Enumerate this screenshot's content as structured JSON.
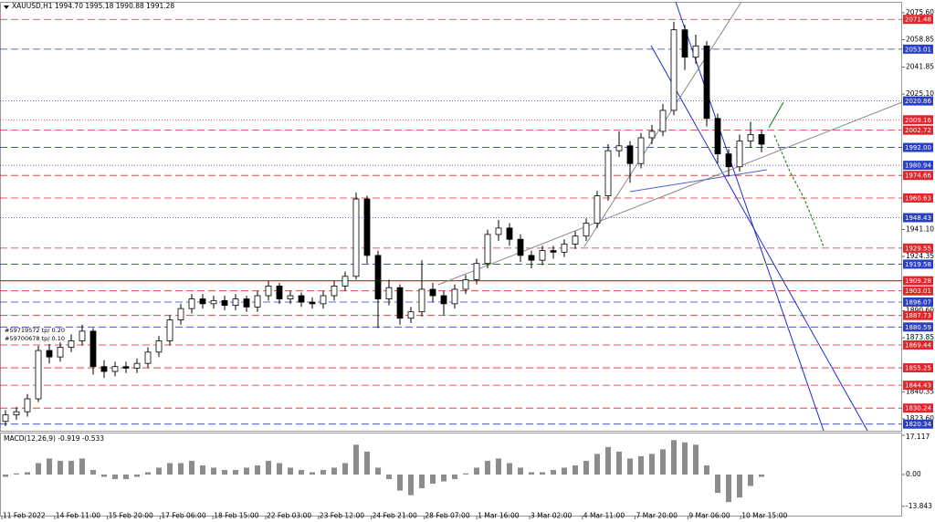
{
  "chart_data": [
    {
      "type": "candlestick",
      "title": "XAUUSD,H1  1994.70 1995.18 1990.88 1991.28",
      "annotations": [
        "#59719572 tp/ 0.20",
        "#59700678 tp/ 0.10"
      ],
      "ylim": [
        1816.2,
        2081.8
      ],
      "yticks": [
        {
          "value": 2075.6,
          "label": "2075.60"
        },
        2058.85,
        2041.85,
        {
          "value": 2025.1,
          "label": "2025.10"
        },
        {
          "value": 1941.1,
          "label": "1941.10"
        },
        1924.35,
        {
          "value": 1890.6,
          "label": "1890.60"
        },
        1873.85,
        1840.35,
        {
          "value": 1823.6,
          "label": "1823.60"
        }
      ],
      "xlabels": [
        "11 Feb 2022",
        "14 Feb 11:00",
        "15 Feb 20:00",
        "17 Feb 06:00",
        "18 Feb 15:00",
        "22 Feb 03:00",
        "23 Feb 12:00",
        "24 Feb 21:00",
        "28 Feb 07:00",
        "1 Mar 16:00",
        "3 Mar 02:00",
        "4 Mar 11:00",
        "7 Mar 20:00",
        "9 Mar 06:00",
        "10 Mar 15:00"
      ],
      "color": "#000000",
      "levels": [
        {
          "value": 2071.48,
          "color": "#e0262b",
          "style": "dashed"
        },
        {
          "value": 2053.01,
          "color": "#2a3fc4",
          "style": "dashed"
        },
        {
          "value": 2020.86,
          "color": "#2a3fc4",
          "style": "dotted"
        },
        {
          "value": 2009.16,
          "color": "#e0262b",
          "style": "dotted"
        },
        {
          "value": 2002.72,
          "color": "#e0262b",
          "style": "dashed"
        },
        {
          "value": 1992,
          "label": "1992.00",
          "color": "#2a3fc4",
          "style": "dashed"
        },
        {
          "value": 1980.94,
          "color": "#2a3fc4",
          "style": "dotted"
        },
        {
          "value": 1974.66,
          "color": "#e0262b",
          "style": "dashed"
        },
        {
          "value": 1960.63,
          "color": "#e0262b",
          "style": "dashed"
        },
        {
          "value": 1948.43,
          "color": "#2a3fc4",
          "style": "dotted"
        },
        {
          "value": 1929.55,
          "color": "#e0262b",
          "style": "dashed"
        },
        {
          "value": 1919.58,
          "color": "#2a3fc4",
          "style": "dashed"
        },
        {
          "value": 1909.28,
          "color": "#e0262b",
          "style": "solid"
        },
        {
          "value": 1903.01,
          "color": "#e0262b",
          "style": "dashed"
        },
        {
          "value": 1896.07,
          "color": "#2a3fc4",
          "style": "dashed"
        },
        {
          "value": 1887.73,
          "color": "#e0262b",
          "style": "dashed"
        },
        {
          "value": 1880.59,
          "color": "#2a3fc4",
          "style": "dashed"
        },
        {
          "value": 1869.44,
          "color": "#e0262b",
          "style": "dashed"
        },
        {
          "value": 1855.25,
          "color": "#e0262b",
          "style": "dashed"
        },
        {
          "value": 1844.43,
          "color": "#e0262b",
          "style": "dashed"
        },
        {
          "value": 1830.24,
          "color": "#e0262b",
          "style": "dashed"
        },
        {
          "value": 1820.34,
          "color": "#2a3fc4",
          "style": "dashed"
        }
      ],
      "candles": [
        [
          1822,
          1829,
          1819,
          1826
        ],
        [
          1826,
          1831,
          1823,
          1828
        ],
        [
          1828,
          1839,
          1825,
          1836
        ],
        [
          1836,
          1869,
          1834,
          1866
        ],
        [
          1866,
          1870,
          1858,
          1862
        ],
        [
          1862,
          1871,
          1859,
          1868
        ],
        [
          1868,
          1876,
          1865,
          1872
        ],
        [
          1872,
          1882,
          1869,
          1878
        ],
        [
          1878,
          1880,
          1851,
          1856
        ],
        [
          1856,
          1860,
          1849,
          1853
        ],
        [
          1853,
          1859,
          1850,
          1856
        ],
        [
          1856,
          1859,
          1852,
          1855
        ],
        [
          1855,
          1861,
          1852,
          1858
        ],
        [
          1858,
          1868,
          1855,
          1865
        ],
        [
          1865,
          1875,
          1862,
          1872
        ],
        [
          1872,
          1888,
          1869,
          1885
        ],
        [
          1885,
          1895,
          1882,
          1892
        ],
        [
          1892,
          1901,
          1889,
          1898
        ],
        [
          1898,
          1901,
          1892,
          1895
        ],
        [
          1895,
          1900,
          1892,
          1897
        ],
        [
          1897,
          1900,
          1891,
          1894
        ],
        [
          1894,
          1901,
          1891,
          1898
        ],
        [
          1898,
          1900,
          1890,
          1893
        ],
        [
          1893,
          1903,
          1890,
          1900
        ],
        [
          1900,
          1909,
          1897,
          1906
        ],
        [
          1906,
          1908,
          1895,
          1898
        ],
        [
          1898,
          1903,
          1895,
          1900
        ],
        [
          1900,
          1902,
          1893,
          1896
        ],
        [
          1896,
          1899,
          1892,
          1895
        ],
        [
          1895,
          1903,
          1892,
          1900
        ],
        [
          1900,
          1909,
          1897,
          1906
        ],
        [
          1906,
          1915,
          1903,
          1912
        ],
        [
          1912,
          1964,
          1910,
          1960
        ],
        [
          1960,
          1962,
          1920,
          1925
        ],
        [
          1925,
          1928,
          1880,
          1898
        ],
        [
          1898,
          1910,
          1894,
          1905
        ],
        [
          1905,
          1907,
          1882,
          1886
        ],
        [
          1886,
          1893,
          1883,
          1890
        ],
        [
          1890,
          1922,
          1887,
          1904
        ],
        [
          1904,
          1908,
          1896,
          1900
        ],
        [
          1900,
          1903,
          1888,
          1895
        ],
        [
          1895,
          1907,
          1892,
          1904
        ],
        [
          1904,
          1913,
          1901,
          1910
        ],
        [
          1910,
          1923,
          1907,
          1920
        ],
        [
          1920,
          1941,
          1917,
          1938
        ],
        [
          1938,
          1947,
          1934,
          1942
        ],
        [
          1942,
          1945,
          1931,
          1935
        ],
        [
          1935,
          1938,
          1921,
          1925
        ],
        [
          1925,
          1928,
          1917,
          1922
        ],
        [
          1922,
          1931,
          1919,
          1928
        ],
        [
          1928,
          1931,
          1923,
          1927
        ],
        [
          1927,
          1935,
          1924,
          1932
        ],
        [
          1932,
          1940,
          1929,
          1937
        ],
        [
          1937,
          1948,
          1934,
          1945
        ],
        [
          1945,
          1965,
          1942,
          1962
        ],
        [
          1962,
          1994,
          1959,
          1990
        ],
        [
          1990,
          2002,
          1986,
          1993
        ],
        [
          1993,
          1996,
          1970,
          1982
        ],
        [
          1982,
          2001,
          1979,
          1998
        ],
        [
          1998,
          2006,
          1994,
          2002
        ],
        [
          2002,
          2019,
          1999,
          2015
        ],
        [
          2015,
          2070,
          2012,
          2065
        ],
        [
          2065,
          2068,
          2040,
          2048
        ],
        [
          2048,
          2062,
          2044,
          2055
        ],
        [
          2055,
          2058,
          2005,
          2010
        ],
        [
          2010,
          2013,
          1982,
          1988
        ],
        [
          1988,
          1991,
          1974,
          1980
        ],
        [
          1980,
          2000,
          1977,
          1996
        ],
        [
          1996,
          2008,
          1992,
          2000
        ],
        [
          2000,
          2003,
          1989,
          1994
        ]
      ]
    },
    {
      "type": "bar",
      "title": "MACD(12,26,9) -0.919 -0.533",
      "ylim": [
        -17.9,
        17.9
      ],
      "yticks": [
        17.117,
        {
          "value": 0,
          "label": "0.00"
        },
        -13.843
      ],
      "color": "#8c8c8c",
      "values": [
        -1,
        0.5,
        1,
        5,
        7,
        6,
        6,
        7,
        2,
        -1,
        -2,
        -2,
        -1,
        1,
        3,
        5,
        5,
        6,
        4,
        3,
        2,
        2,
        3,
        4,
        6,
        5,
        3,
        2,
        1,
        2,
        3,
        5,
        13,
        10,
        3,
        -2,
        -7,
        -9,
        -6,
        -4,
        -3,
        -2,
        0.5,
        3,
        6,
        7,
        5,
        3,
        1,
        1,
        2,
        3,
        4,
        6,
        9,
        12,
        10,
        7,
        8,
        9,
        11,
        15,
        14,
        13,
        4,
        -8,
        -12,
        -10,
        -5,
        -1
      ]
    }
  ]
}
